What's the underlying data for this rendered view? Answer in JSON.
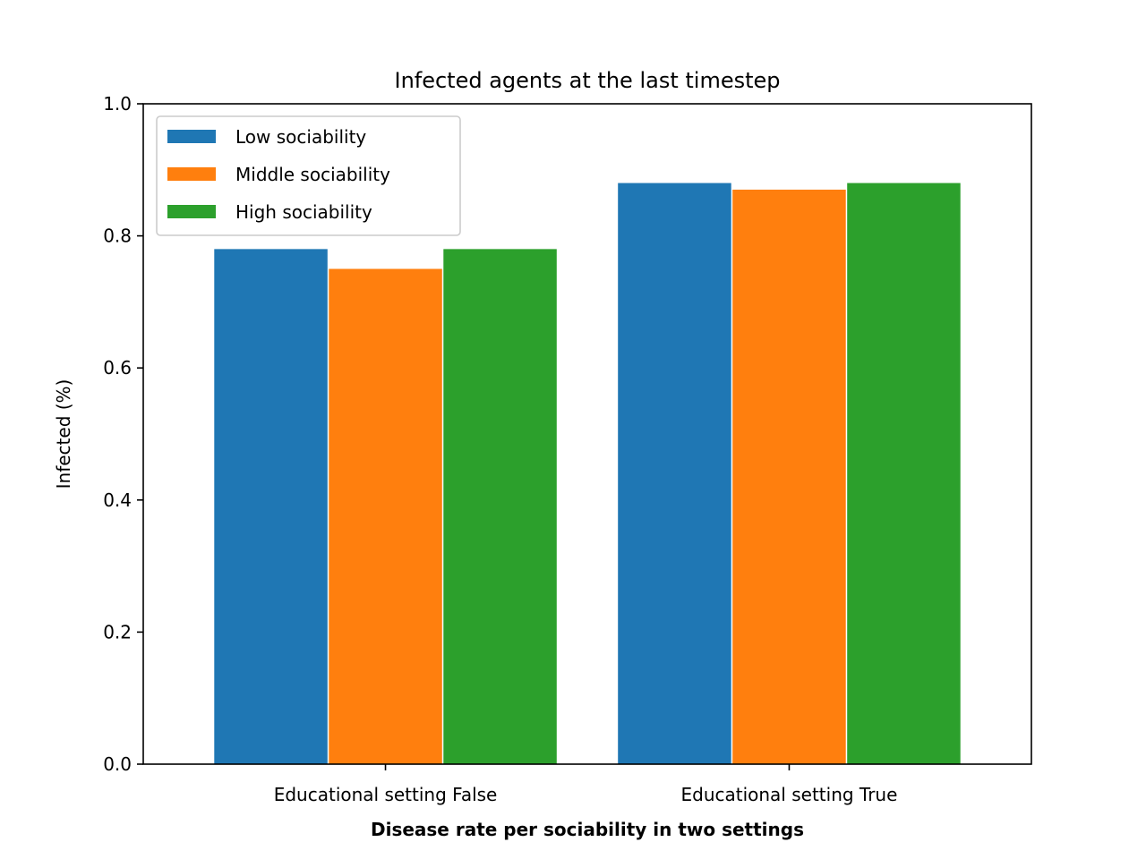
{
  "chart_data": {
    "type": "bar",
    "title": "Infected agents at the last timestep",
    "xlabel": "Disease rate per sociability in two settings",
    "ylabel": "Infected (%)",
    "categories": [
      "Educational setting False",
      "Educational setting True"
    ],
    "series": [
      {
        "name": "Low sociability",
        "color": "#1f77b4",
        "values": [
          0.78,
          0.88
        ]
      },
      {
        "name": "Middle sociability",
        "color": "#ff7f0e",
        "values": [
          0.75,
          0.87
        ]
      },
      {
        "name": "High sociability",
        "color": "#2ca02c",
        "values": [
          0.78,
          0.88
        ]
      }
    ],
    "ylim": [
      0,
      1.0
    ],
    "yticks": [
      "0.0",
      "0.2",
      "0.4",
      "0.6",
      "0.8",
      "1.0"
    ],
    "legend_position": "top-left",
    "grid": false
  }
}
